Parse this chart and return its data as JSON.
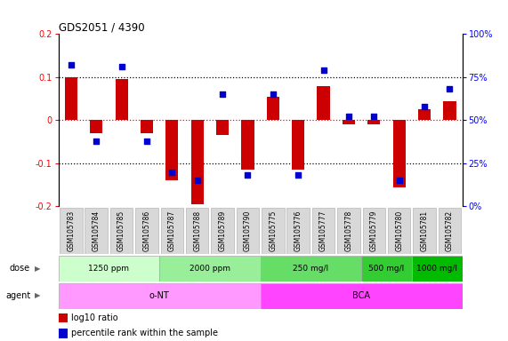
{
  "title": "GDS2051 / 4390",
  "samples": [
    "GSM105783",
    "GSM105784",
    "GSM105785",
    "GSM105786",
    "GSM105787",
    "GSM105788",
    "GSM105789",
    "GSM105790",
    "GSM105775",
    "GSM105776",
    "GSM105777",
    "GSM105778",
    "GSM105779",
    "GSM105780",
    "GSM105781",
    "GSM105782"
  ],
  "log10_ratio": [
    0.1,
    -0.03,
    0.095,
    -0.03,
    -0.14,
    -0.195,
    -0.035,
    -0.115,
    0.055,
    -0.115,
    0.08,
    -0.01,
    -0.01,
    -0.155,
    0.025,
    0.045
  ],
  "percentile_raw": [
    82,
    38,
    81,
    38,
    20,
    15,
    65,
    18,
    65,
    18,
    79,
    52,
    52,
    15,
    58,
    68
  ],
  "dose_groups": [
    {
      "label": "1250 ppm",
      "start": 0,
      "end": 4,
      "color": "#ccffcc"
    },
    {
      "label": "2000 ppm",
      "start": 4,
      "end": 8,
      "color": "#99ee99"
    },
    {
      "label": "250 mg/l",
      "start": 8,
      "end": 12,
      "color": "#66dd66"
    },
    {
      "label": "500 mg/l",
      "start": 12,
      "end": 14,
      "color": "#33cc33"
    },
    {
      "label": "1000 mg/l",
      "start": 14,
      "end": 16,
      "color": "#00bb00"
    }
  ],
  "agent_groups": [
    {
      "label": "o-NT",
      "start": 0,
      "end": 8,
      "color": "#ff88ff"
    },
    {
      "label": "BCA",
      "start": 8,
      "end": 16,
      "color": "#ee44ee"
    }
  ],
  "ylim": [
    -0.2,
    0.2
  ],
  "bar_color": "#cc0000",
  "dot_color": "#0000cc",
  "left_ytick_vals": [
    -0.2,
    -0.1,
    0.0,
    0.1,
    0.2
  ],
  "left_ytick_labels": [
    "-0.2",
    "-0.1",
    "0",
    "0.1",
    "0.2"
  ],
  "right_ytick_labels": [
    "0%",
    "25%",
    "50%",
    "75%",
    "100%"
  ],
  "dose_label": "dose",
  "agent_label": "agent",
  "legend_ratio": "log10 ratio",
  "legend_pct": "percentile rank within the sample"
}
